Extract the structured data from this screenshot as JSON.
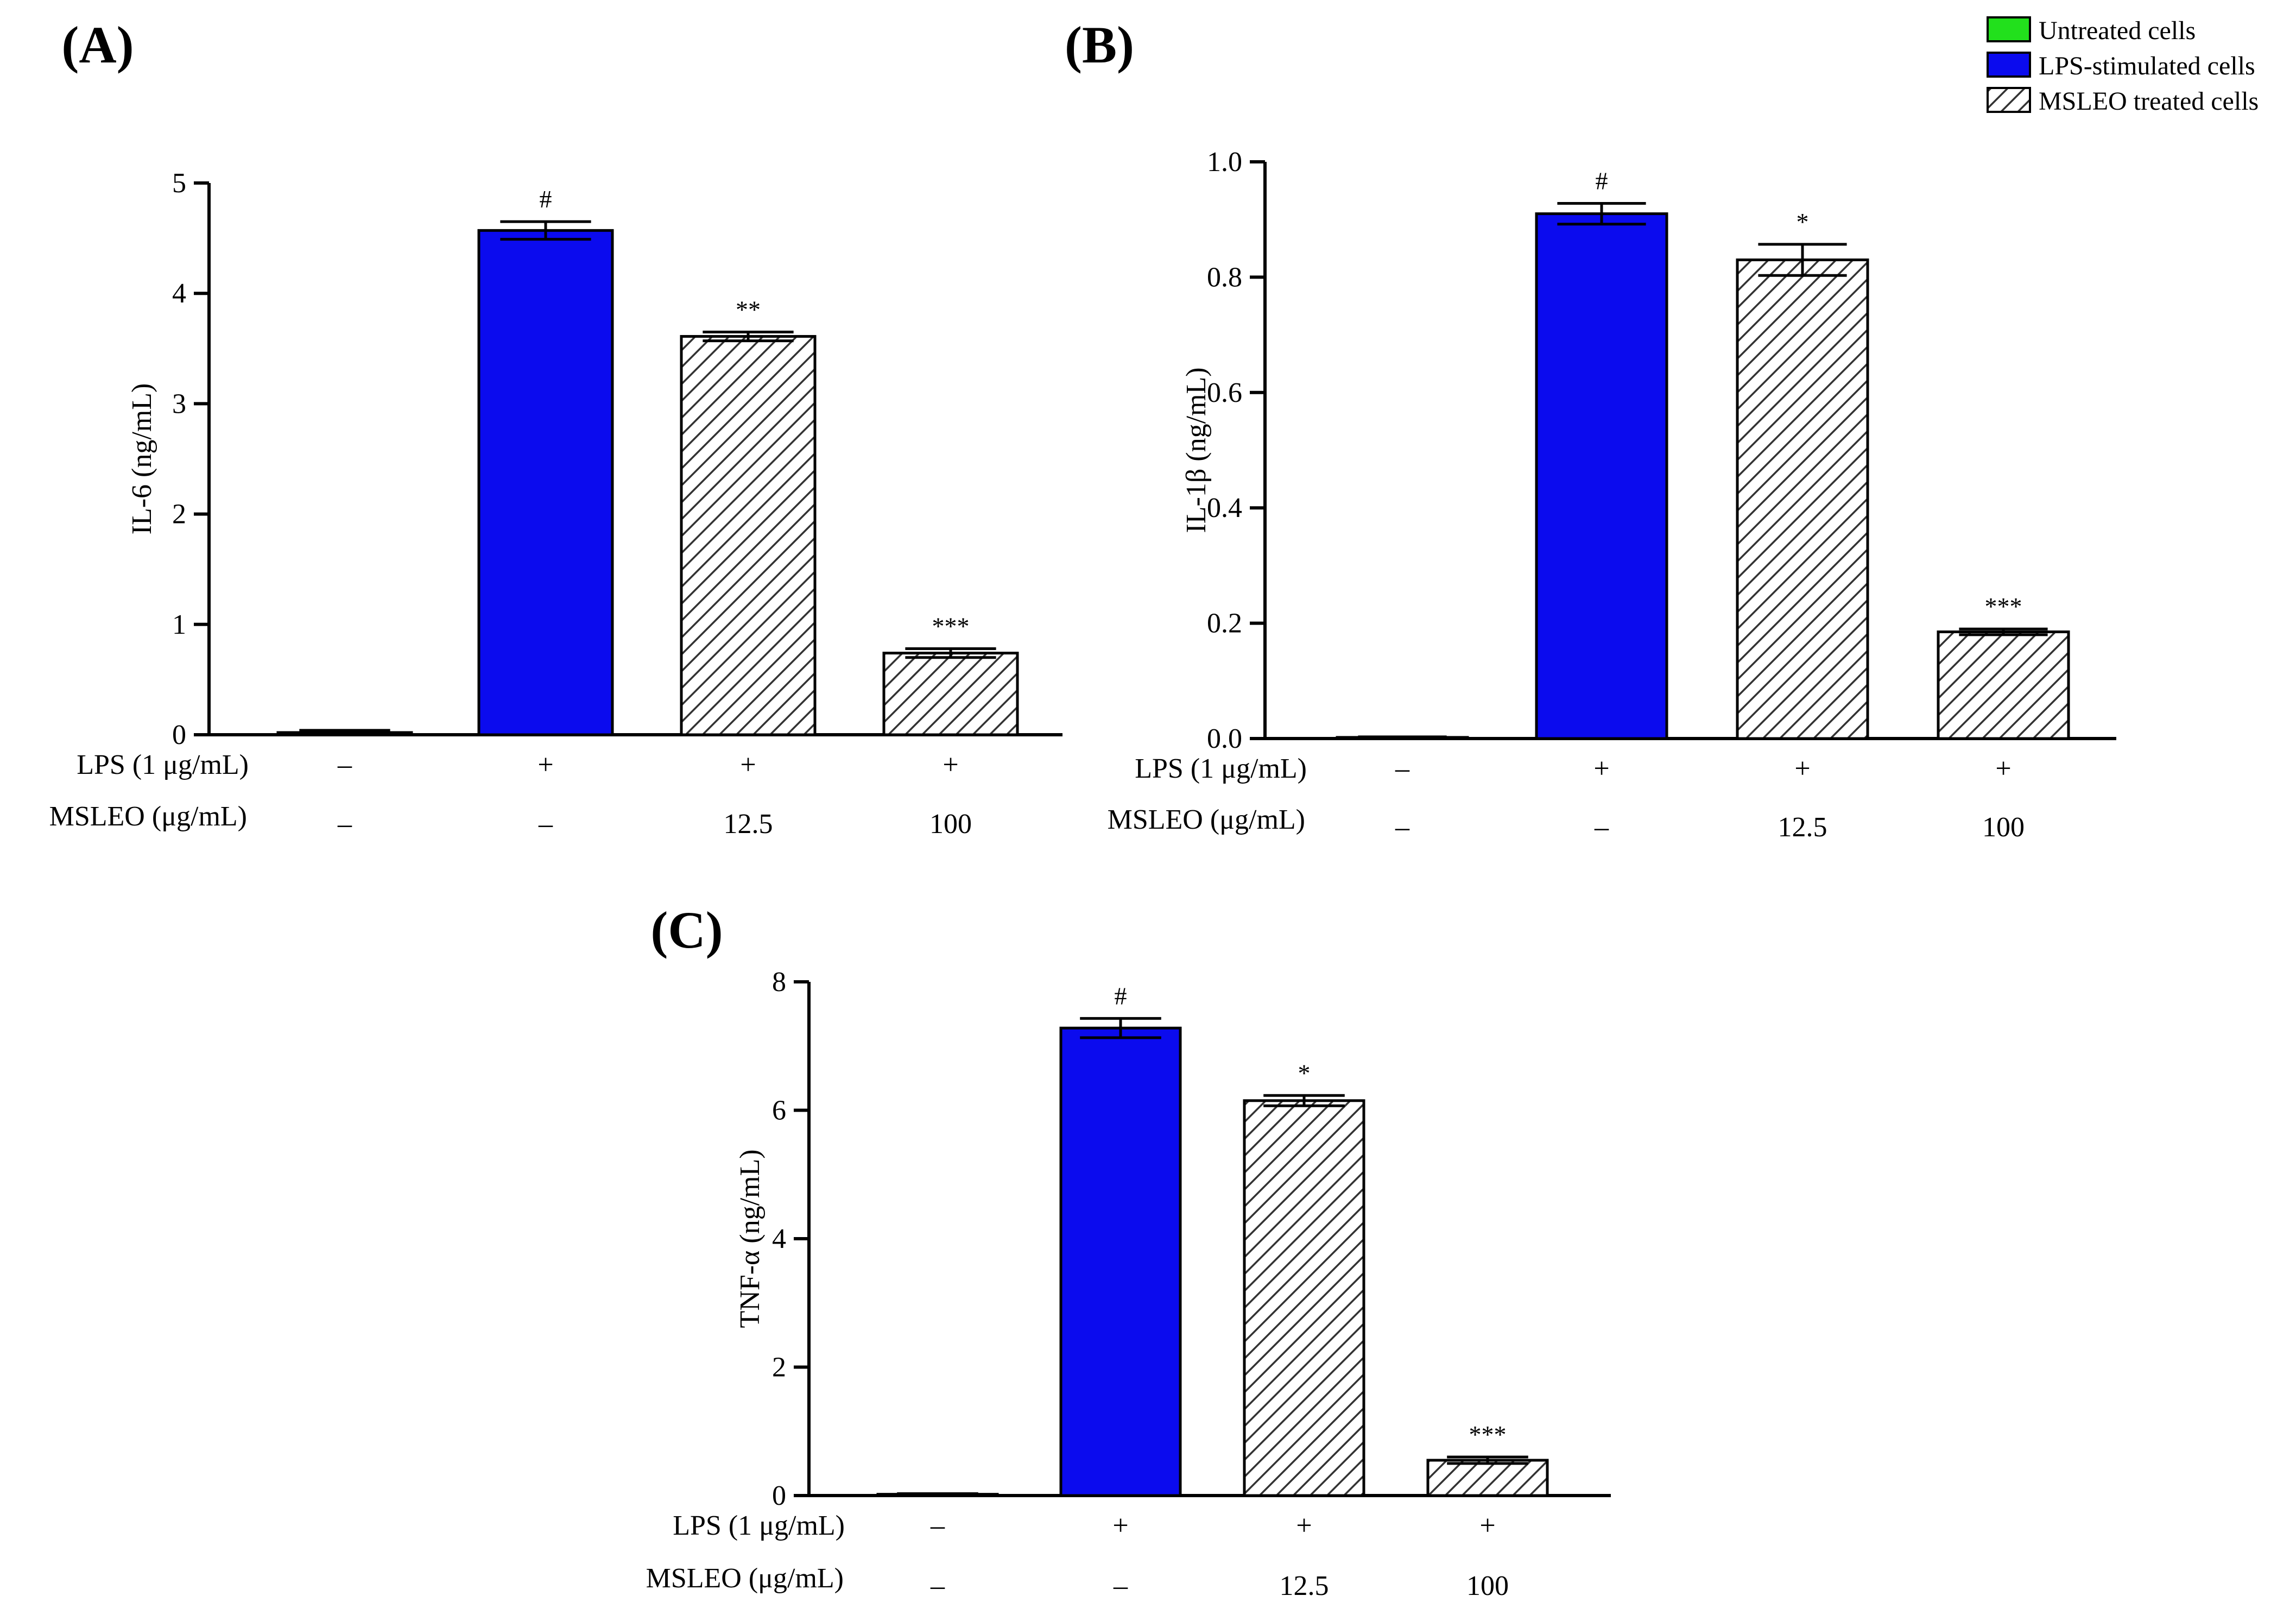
{
  "figure": {
    "legend": {
      "items": [
        {
          "key": "untreated",
          "label": "Untreated cells",
          "fill": "#22e01c"
        },
        {
          "key": "lps",
          "label": "LPS-stimulated cells",
          "fill": "#0b0bee"
        },
        {
          "key": "msleo",
          "label": "MSLEO treated cells",
          "fill": "hatch"
        }
      ]
    },
    "row_labels": {
      "lps": "LPS (1 μg/mL)",
      "msleo": "MSLEO (μg/mL)"
    }
  },
  "chart_data": [
    {
      "id": "A",
      "panel_label": "(A)",
      "type": "bar",
      "ylabel": "IL-6 (ng/mL)",
      "ylim": [
        0,
        5
      ],
      "yticks": [
        0,
        1,
        2,
        3,
        4,
        5
      ],
      "ytick_labels": [
        "0",
        "1",
        "2",
        "3",
        "4",
        "5"
      ],
      "categories": [
        "Untreated cells",
        "LPS-stimulated cells",
        "MSLEO 12.5",
        "MSLEO 100"
      ],
      "values": [
        0.02,
        4.57,
        3.61,
        0.74
      ],
      "errors": [
        0.02,
        0.08,
        0.04,
        0.04
      ],
      "fills": [
        "untreated",
        "lps",
        "msleo",
        "msleo"
      ],
      "significance": [
        "",
        "#",
        "**",
        "***"
      ],
      "lps_row": [
        "–",
        "+",
        "+",
        "+"
      ],
      "msleo_row": [
        "–",
        "–",
        "12.5",
        "100"
      ]
    },
    {
      "id": "B",
      "panel_label": "(B)",
      "type": "bar",
      "ylabel": "IL-1β (ng/mL)",
      "ylim": [
        0,
        1.0
      ],
      "yticks": [
        0,
        0.2,
        0.4,
        0.6,
        0.8,
        1.0
      ],
      "ytick_labels": [
        "0.0",
        "0.2",
        "0.4",
        "0.6",
        "0.8",
        "1.0"
      ],
      "categories": [
        "Untreated cells",
        "LPS-stimulated cells",
        "MSLEO 12.5",
        "MSLEO 100"
      ],
      "values": [
        0.002,
        0.91,
        0.83,
        0.185
      ],
      "errors": [
        0.001,
        0.018,
        0.027,
        0.005
      ],
      "fills": [
        "untreated",
        "lps",
        "msleo",
        "msleo"
      ],
      "significance": [
        "",
        "#",
        "*",
        "***"
      ],
      "lps_row": [
        "–",
        "+",
        "+",
        "+"
      ],
      "msleo_row": [
        "–",
        "–",
        "12.5",
        "100"
      ]
    },
    {
      "id": "C",
      "panel_label": "(C)",
      "type": "bar",
      "ylabel": "TNF-α (ng/mL)",
      "ylim": [
        0,
        8
      ],
      "yticks": [
        0,
        2,
        4,
        6,
        8
      ],
      "ytick_labels": [
        "0",
        "2",
        "4",
        "6",
        "8"
      ],
      "categories": [
        "Untreated cells",
        "LPS-stimulated cells",
        "MSLEO 12.5",
        "MSLEO 100"
      ],
      "values": [
        0.02,
        7.28,
        6.15,
        0.55
      ],
      "errors": [
        0.01,
        0.15,
        0.08,
        0.05
      ],
      "fills": [
        "untreated",
        "lps",
        "msleo",
        "msleo"
      ],
      "significance": [
        "",
        "#",
        "*",
        "***"
      ],
      "lps_row": [
        "–",
        "+",
        "+",
        "+"
      ],
      "msleo_row": [
        "–",
        "–",
        "12.5",
        "100"
      ]
    }
  ]
}
